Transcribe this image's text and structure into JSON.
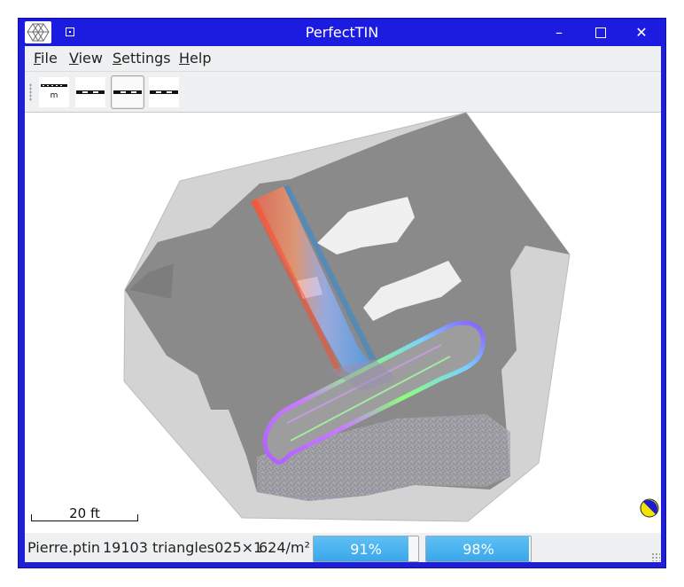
{
  "window": {
    "title": "PerfectTIN",
    "controls": {
      "minimize": "–",
      "maximize": "□",
      "close": "✕"
    }
  },
  "menu": {
    "file": {
      "underline": "F",
      "rest": "ile"
    },
    "view": {
      "underline": "V",
      "rest": "iew"
    },
    "settings": {
      "underline": "S",
      "rest": "ettings"
    },
    "help": {
      "underline": "H",
      "rest": "elp"
    }
  },
  "toolbar": {
    "scale_icon_label": "m",
    "buttons": [
      "scale-mode",
      "contour-mode",
      "shaded-mode",
      "triangle-mode"
    ],
    "active_button": "shaded-mode"
  },
  "viewport": {
    "scale_bar_label": "20 ft"
  },
  "status": {
    "filename": "Pierre.ptin",
    "triangles": "19103 triangles",
    "tolerance": ".025×1",
    "density": "624/m²",
    "progress1": {
      "label": "91%",
      "value": 0.91
    },
    "progress2": {
      "label": "98%",
      "value": 0.98
    }
  },
  "colors": {
    "titlebar": "#1c1ce0",
    "terrain": "#8a8a8a",
    "hull": "#d3d3d3",
    "progress": "#3aa6ea",
    "compass_yellow": "#f2e400",
    "compass_blue": "#1b1bd0"
  }
}
